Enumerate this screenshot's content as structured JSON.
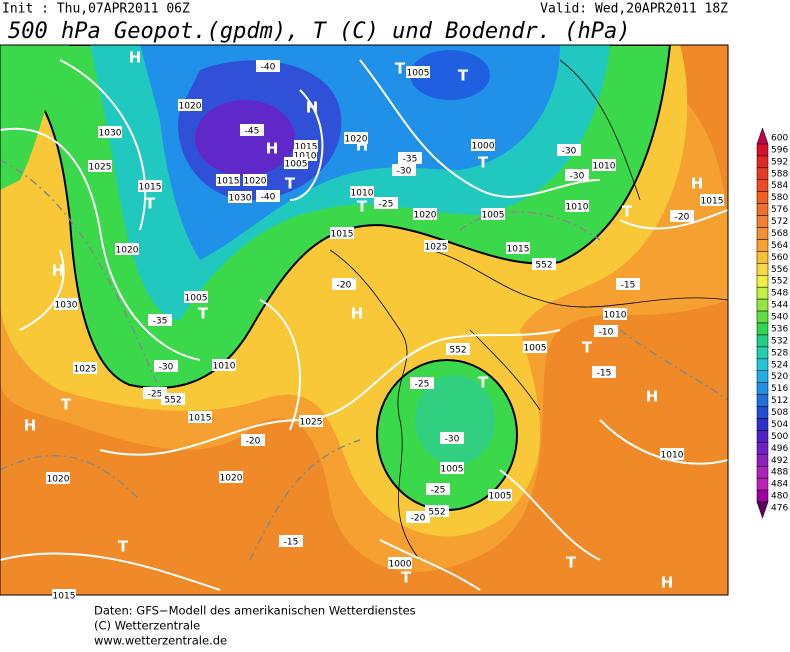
{
  "header": {
    "init": "Init : Thu,07APR2011 06Z",
    "valid": "Valid: Wed,20APR2011 18Z",
    "title": "500 hPa Geopot.(gpdm), T (C) und Bodendr. (hPa)"
  },
  "colorbar": {
    "levels": [
      600,
      596,
      592,
      588,
      584,
      580,
      576,
      572,
      568,
      564,
      560,
      556,
      552,
      548,
      544,
      540,
      536,
      532,
      528,
      524,
      520,
      516,
      512,
      508,
      504,
      500,
      496,
      492,
      488,
      484,
      480,
      476
    ],
    "colors": [
      "#c0004c",
      "#d8102c",
      "#e0281f",
      "#e83a20",
      "#ee4c20",
      "#f05e20",
      "#f27028",
      "#f48030",
      "#f59030",
      "#f8a030",
      "#f8c030",
      "#f8d840",
      "#f0f040",
      "#c0f040",
      "#90e840",
      "#60e040",
      "#30d850",
      "#20d080",
      "#20d0b0",
      "#20c8d8",
      "#20b0e8",
      "#2090e8",
      "#2070e0",
      "#2050d8",
      "#3030d0",
      "#5020c8",
      "#7020c8",
      "#9020c0",
      "#b020c0",
      "#c020b8",
      "#a000a0",
      "#600060"
    ]
  },
  "map_labels": [
    "H",
    "T",
    "1005",
    "T",
    "1020",
    "H",
    "-40",
    "-45",
    "1030",
    "1015",
    "1010",
    "1005",
    "H",
    "H",
    "1020",
    "1000",
    "T",
    "-35",
    "-30",
    "1010",
    "1025",
    "-30",
    "-30",
    "1015",
    "T",
    "1015",
    "1020",
    "T",
    "-40",
    "1030",
    "1010",
    "T",
    "-25",
    "1020",
    "1005",
    "1010",
    "T",
    "H",
    "1015",
    "-20",
    "1015",
    "1025",
    "1015",
    "552",
    "H",
    "1020",
    "-20",
    "-15",
    "1030",
    "1005",
    "T",
    "-35",
    "H",
    "1010",
    "-10",
    "T",
    "552",
    "1005",
    "1010",
    "-30",
    "1025",
    "-25",
    "T",
    "-15",
    "-25",
    "552",
    "1015",
    "1025",
    "H",
    "H",
    "T",
    "-20",
    "-30",
    "1010",
    "1020",
    "1020",
    "1005",
    "-25",
    "1005",
    "-20",
    "552",
    "-15",
    "T",
    "1000",
    "T",
    "T",
    "H",
    "1015"
  ],
  "footer": [
    "Daten: GFS−Modell des amerikanischen Wetterdienstes",
    "(C) Wetterzentrale",
    "www.wetterzentrale.de"
  ]
}
